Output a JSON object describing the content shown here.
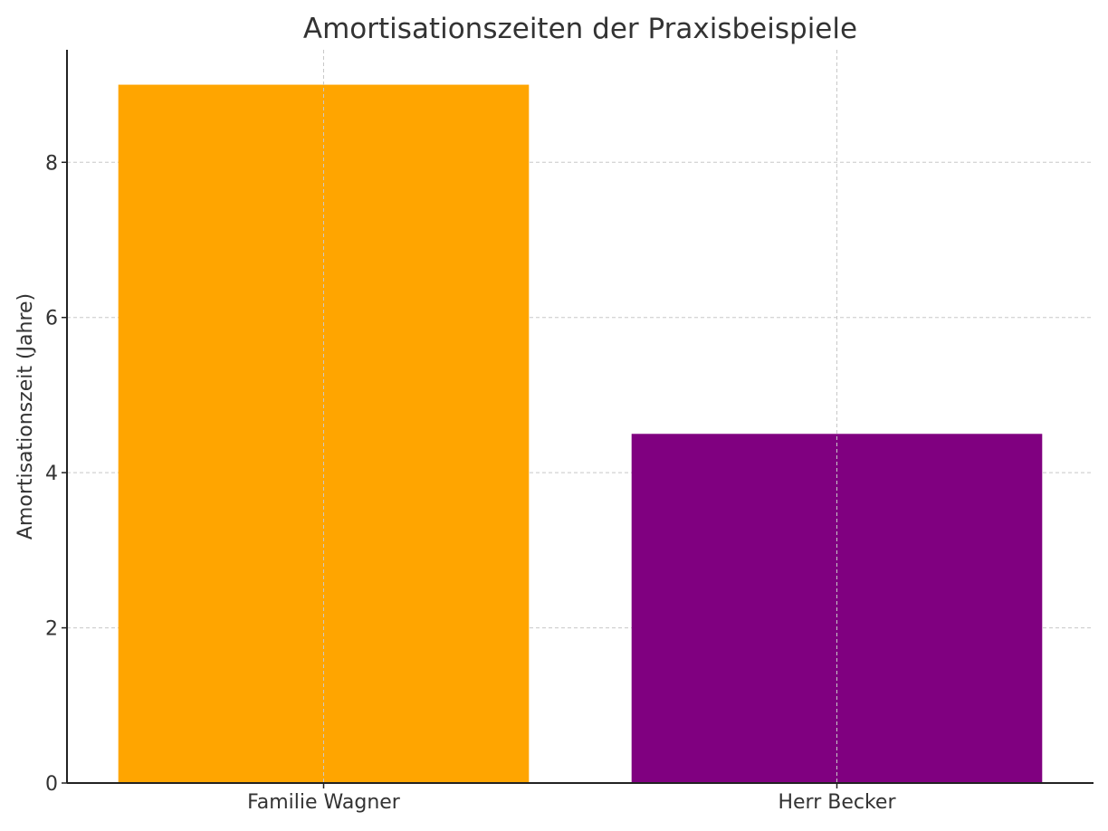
{
  "chart_data": {
    "type": "bar",
    "title": "Amortisationszeiten der Praxisbeispiele",
    "xlabel": "",
    "ylabel": "Amortisationszeit (Jahre)",
    "categories": [
      "Familie Wagner",
      "Herr Becker"
    ],
    "values": [
      9,
      4.5
    ],
    "colors": [
      "#FFA500",
      "#800080"
    ],
    "ylim": [
      0,
      9.45
    ],
    "yticks": [
      0,
      2,
      4,
      6,
      8
    ],
    "ytick_labels": [
      "0",
      "2",
      "4",
      "6",
      "8"
    ],
    "grid": true,
    "grid_style": "dashed",
    "legend": "none"
  }
}
